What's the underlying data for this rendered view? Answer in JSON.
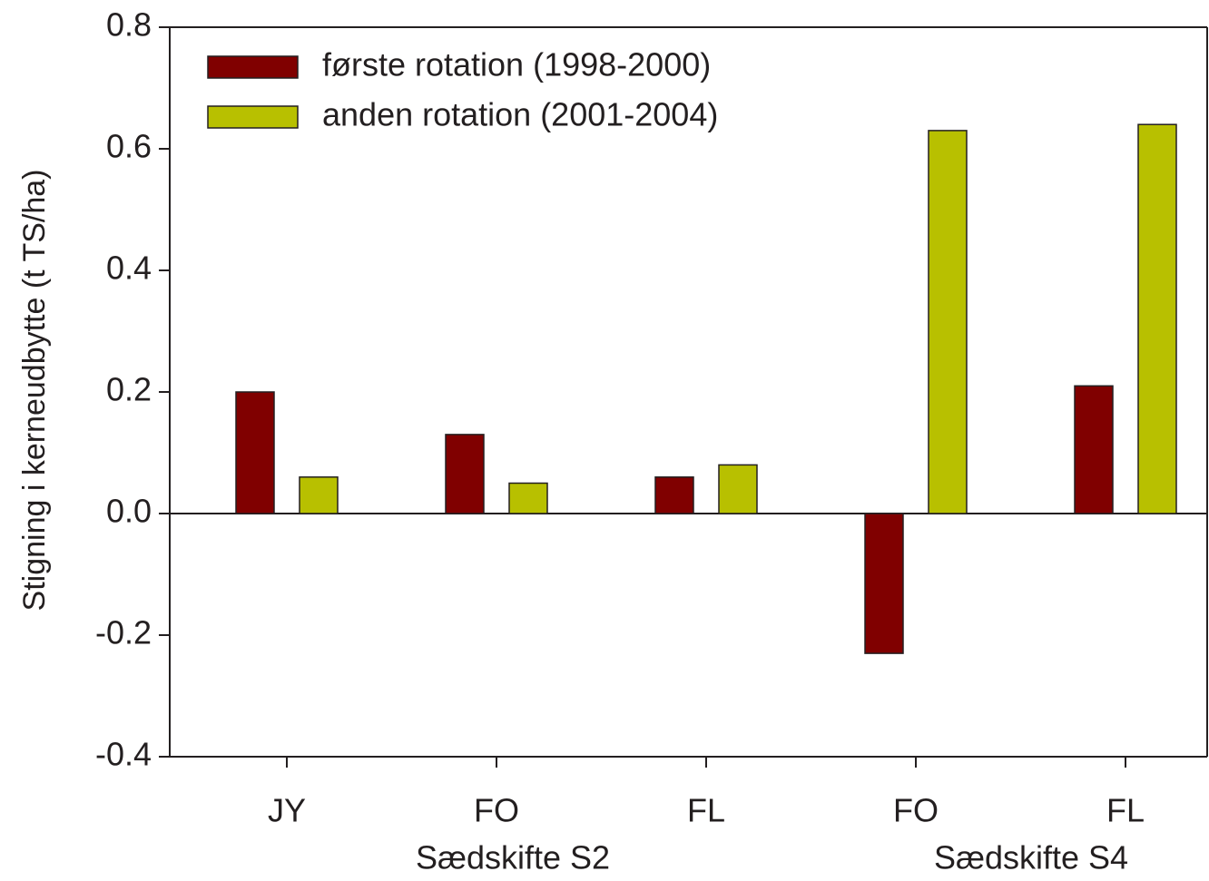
{
  "chart_data": {
    "type": "bar",
    "y_label": "Stigning i kerneudbytte (t TS/ha)",
    "categories": [
      "JY",
      "FO",
      "FL",
      "FO",
      "FL"
    ],
    "group_labels": [
      "Sædskifte S2",
      "Sædskifte S4"
    ],
    "series": [
      {
        "name": "første rotation (1998-2000)",
        "color": "#800000",
        "values": [
          0.2,
          0.13,
          0.06,
          -0.23,
          0.21
        ]
      },
      {
        "name": "anden rotation (2001-2004)",
        "color": "#b8c000",
        "values": [
          0.06,
          0.05,
          0.08,
          0.63,
          0.64
        ]
      }
    ],
    "ylim": [
      -0.4,
      0.8
    ],
    "yticks": [
      {
        "value": -0.4,
        "label": "-0.4"
      },
      {
        "value": -0.2,
        "label": "-0.2"
      },
      {
        "value": 0,
        "label": "0.0"
      },
      {
        "value": 0.2,
        "label": "0.2"
      },
      {
        "value": 0.4,
        "label": "0.4"
      },
      {
        "value": 0.6,
        "label": "0.6"
      },
      {
        "value": 0.8,
        "label": "0.8"
      }
    ],
    "legend": "upper left"
  }
}
